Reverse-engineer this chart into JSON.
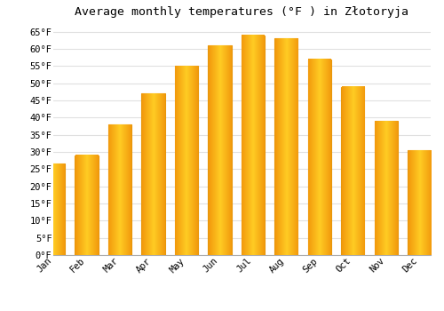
{
  "title": "Average monthly temperatures (°F ) in Złotoryja",
  "months": [
    "Jan",
    "Feb",
    "Mar",
    "Apr",
    "May",
    "Jun",
    "Jul",
    "Aug",
    "Sep",
    "Oct",
    "Nov",
    "Dec"
  ],
  "values": [
    26.6,
    29.0,
    38.0,
    47.0,
    55.0,
    61.0,
    64.0,
    63.0,
    57.0,
    49.0,
    39.0,
    30.5
  ],
  "bar_color": "#FFC125",
  "bar_edge_color": "#E8960A",
  "background_color": "#FFFFFF",
  "grid_color": "#E0E0E0",
  "ylim": [
    0,
    67
  ],
  "yticks": [
    0,
    5,
    10,
    15,
    20,
    25,
    30,
    35,
    40,
    45,
    50,
    55,
    60,
    65
  ],
  "ytick_labels": [
    "0°F",
    "5°F",
    "10°F",
    "15°F",
    "20°F",
    "25°F",
    "30°F",
    "35°F",
    "40°F",
    "45°F",
    "50°F",
    "55°F",
    "60°F",
    "65°F"
  ],
  "title_fontsize": 9.5,
  "tick_fontsize": 7.5,
  "font_family": "monospace"
}
